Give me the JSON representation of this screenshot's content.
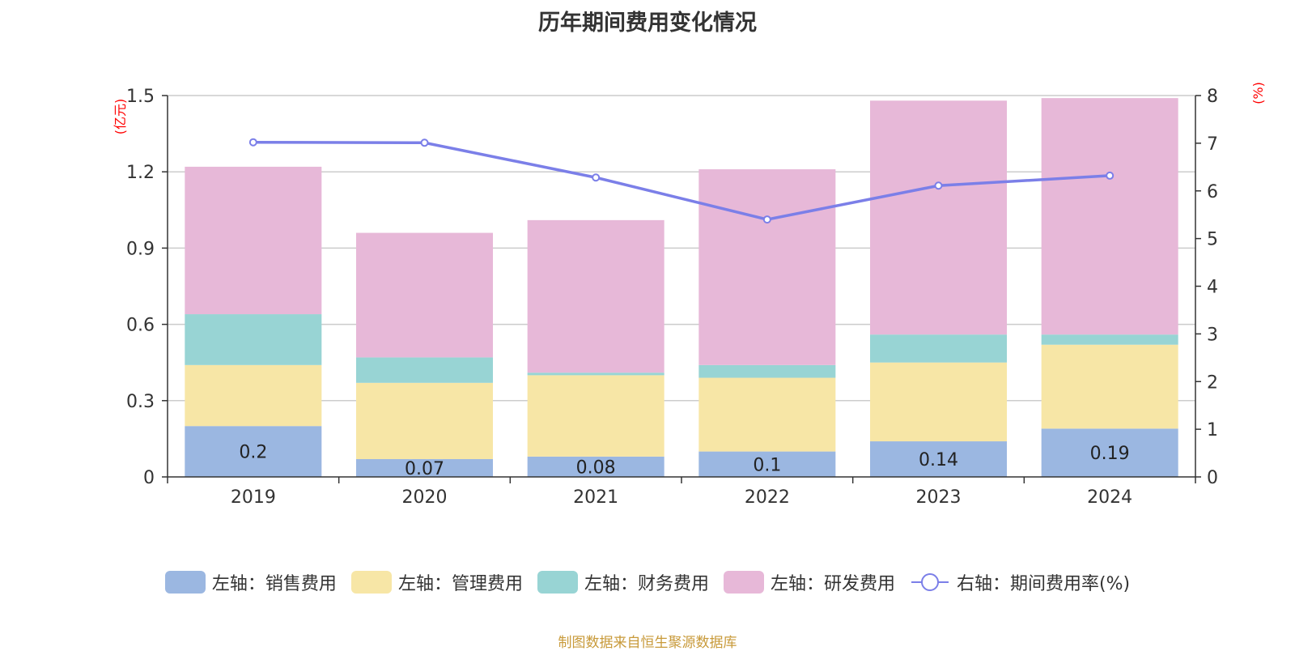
{
  "title": "历年期间费用变化情况",
  "source_text": "制图数据来自恒生聚源数据库",
  "chart_data": {
    "type": "bar",
    "stacked": true,
    "categories": [
      "2019",
      "2020",
      "2021",
      "2022",
      "2023",
      "2024"
    ],
    "left_axis": {
      "unit_label": "(亿元)",
      "range": [
        0,
        1.5
      ],
      "ticks": [
        "0",
        "0.3",
        "0.6",
        "0.9",
        "1.2",
        "1.5"
      ]
    },
    "right_axis": {
      "unit_label": "(%)",
      "range": [
        0,
        8
      ],
      "ticks": [
        "0",
        "1",
        "2",
        "3",
        "4",
        "5",
        "6",
        "7",
        "8"
      ]
    },
    "grid": true,
    "legend_position": "bottom",
    "series": [
      {
        "name": "左轴：销售费用",
        "type": "bar",
        "axis": "left",
        "color": "#9bb7e1",
        "values": [
          0.2,
          0.07,
          0.08,
          0.1,
          0.14,
          0.19
        ],
        "data_labels": [
          "0.2",
          "0.07",
          "0.08",
          "0.1",
          "0.14",
          "0.19"
        ]
      },
      {
        "name": "左轴：管理费用",
        "type": "bar",
        "axis": "left",
        "color": "#f7e6a6",
        "values": [
          0.24,
          0.3,
          0.32,
          0.29,
          0.31,
          0.33
        ]
      },
      {
        "name": "左轴：财务费用",
        "type": "bar",
        "axis": "left",
        "color": "#98d4d4",
        "values": [
          0.2,
          0.1,
          0.01,
          0.05,
          0.11,
          0.04
        ]
      },
      {
        "name": "左轴：研发费用",
        "type": "bar",
        "axis": "left",
        "color": "#e7b8d8",
        "values": [
          0.58,
          0.49,
          0.6,
          0.77,
          0.92,
          0.93
        ]
      },
      {
        "name": "右轴：期间费用率(%)",
        "type": "line",
        "axis": "right",
        "color": "#7b7fe8",
        "values": [
          7.02,
          7.01,
          6.28,
          5.4,
          6.11,
          6.32
        ]
      }
    ]
  }
}
